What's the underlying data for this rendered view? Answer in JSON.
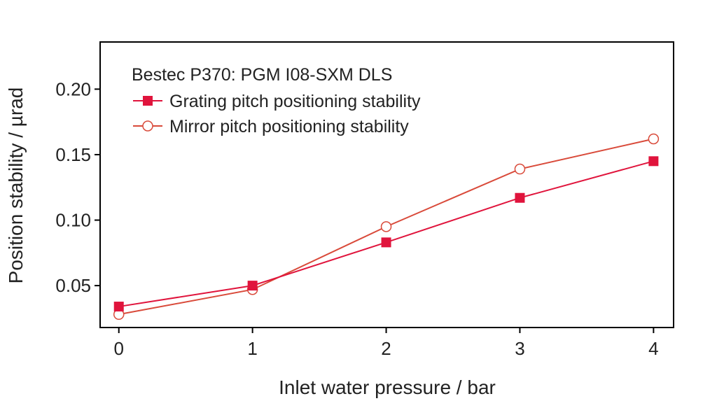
{
  "chart_data": {
    "type": "line",
    "title": "Bestec P370: PGM I08-SXM DLS",
    "xlabel": "Inlet water pressure / bar",
    "ylabel": "Position stability / µrad",
    "x": [
      0,
      1,
      2,
      3,
      4
    ],
    "xlim": [
      -0.14,
      4.15
    ],
    "ylim": [
      0.018,
      0.236
    ],
    "x_ticks": [
      "0",
      "1",
      "2",
      "3",
      "4"
    ],
    "y_ticks": [
      "0.05",
      "0.10",
      "0.15",
      "0.20"
    ],
    "y_tick_values": [
      0.05,
      0.1,
      0.15,
      0.2
    ],
    "grid": false,
    "legend_position": "top-left",
    "series": [
      {
        "name": "Grating pitch positioning stability",
        "values": [
          0.034,
          0.05,
          0.083,
          0.117,
          0.145
        ],
        "marker": "filled-square",
        "color": "#e0143c"
      },
      {
        "name": "Mirror pitch positioning stability",
        "values": [
          0.028,
          0.047,
          0.095,
          0.139,
          0.162
        ],
        "marker": "open-circle",
        "color": "#d94a3a"
      }
    ]
  }
}
